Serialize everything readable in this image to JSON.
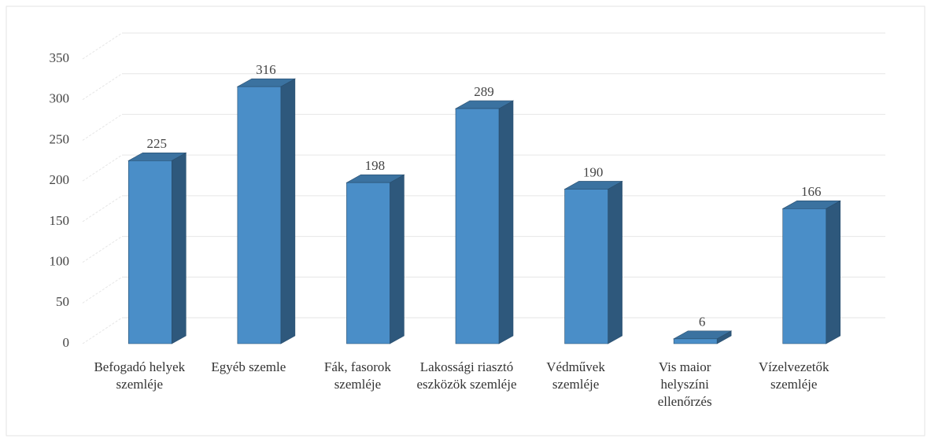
{
  "chart_data": {
    "type": "bar",
    "categories": [
      "Befogadó helyek szemléje",
      "Egyéb szemle",
      "Fák, fasorok szemléje",
      "Lakossági riasztó eszközök szemléje",
      "Védművek szemléje",
      "Vis maior helyszíni ellenőrzés",
      "Vízelvezetők szemléje"
    ],
    "values": [
      225,
      316,
      198,
      289,
      190,
      6,
      166
    ],
    "color": "#4a8ec8",
    "ylim": [
      0,
      350
    ],
    "yticks": [
      0,
      50,
      100,
      150,
      200,
      250,
      300,
      350
    ],
    "grid": true
  }
}
